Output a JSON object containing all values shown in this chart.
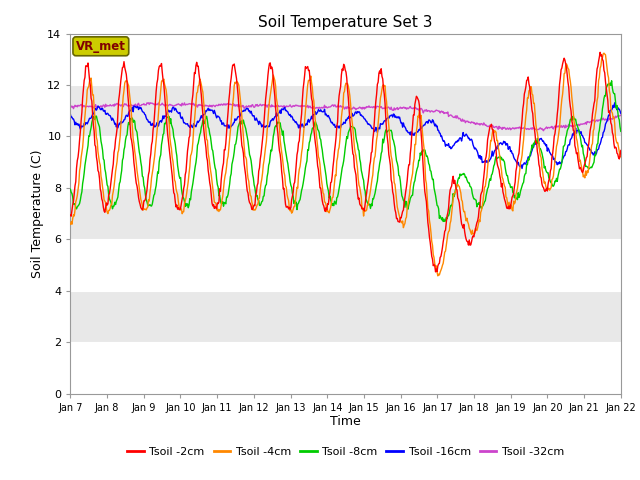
{
  "title": "Soil Temperature Set 3",
  "xlabel": "Time",
  "ylabel": "Soil Temperature (C)",
  "ylim": [
    0,
    14
  ],
  "xlim": [
    0,
    15
  ],
  "xtick_labels": [
    "Jan 7",
    "Jan 8",
    "Jan 9",
    "Jan 10",
    "Jan 11",
    "Jan 12",
    "Jan 13",
    "Jan 14",
    "Jan 15",
    "Jan 16",
    "Jan 17",
    "Jan 18",
    "Jan 19",
    "Jan 20",
    "Jan 21",
    "Jan 22"
  ],
  "ytick_values": [
    0,
    2,
    4,
    6,
    8,
    10,
    12,
    14
  ],
  "annotation_text": "VR_met",
  "bg_color": "#e8e8e8",
  "fig_color": "#ffffff",
  "colors": {
    "2cm": "#ff0000",
    "4cm": "#ff8800",
    "8cm": "#00cc00",
    "16cm": "#0000ff",
    "32cm": "#cc44cc"
  },
  "legend_labels": [
    "Tsoil -2cm",
    "Tsoil -4cm",
    "Tsoil -8cm",
    "Tsoil -16cm",
    "Tsoil -32cm"
  ],
  "band_colors": [
    "#ffffff",
    "#e8e8e8"
  ],
  "band_edges": [
    0,
    2,
    4,
    6,
    8,
    10,
    12,
    14
  ]
}
